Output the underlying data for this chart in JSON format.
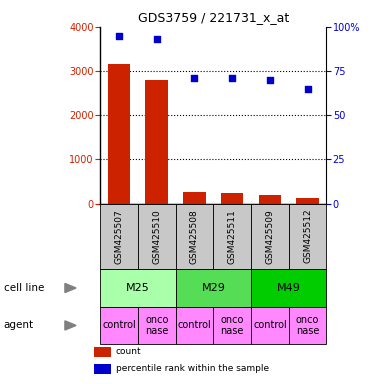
{
  "title": "GDS3759 / 221731_x_at",
  "samples": [
    "GSM425507",
    "GSM425510",
    "GSM425508",
    "GSM425511",
    "GSM425509",
    "GSM425512"
  ],
  "counts": [
    3150,
    2800,
    260,
    230,
    190,
    130
  ],
  "percentiles": [
    95,
    93,
    71,
    71,
    70,
    65
  ],
  "cell_lines": [
    {
      "label": "M25",
      "cols": [
        0,
        1
      ],
      "color": "#AAFFAA"
    },
    {
      "label": "M29",
      "cols": [
        2,
        3
      ],
      "color": "#55DD55"
    },
    {
      "label": "M49",
      "cols": [
        4,
        5
      ],
      "color": "#00CC00"
    }
  ],
  "agents": [
    "control",
    "onconase",
    "control",
    "onconase",
    "control",
    "onconase"
  ],
  "agent_color": "#FF88FF",
  "sample_bg_color": "#C8C8C8",
  "bar_color": "#CC2200",
  "dot_color": "#0000CC",
  "ylim_left": [
    0,
    4000
  ],
  "ylim_right": [
    0,
    100
  ],
  "yticks_left": [
    0,
    1000,
    2000,
    3000,
    4000
  ],
  "yticks_right": [
    0,
    25,
    50,
    75,
    100
  ],
  "ytick_labels_right": [
    "0",
    "25",
    "50",
    "75",
    "100%"
  ],
  "grid_lines": [
    1000,
    2000,
    3000
  ],
  "legend_items": [
    {
      "color": "#CC2200",
      "label": "count"
    },
    {
      "color": "#0000CC",
      "label": "percentile rank within the sample"
    }
  ],
  "row_labels": [
    "cell line",
    "agent"
  ],
  "sample_font_size": 6.5,
  "cell_line_font_size": 8,
  "agent_font_size": 7
}
